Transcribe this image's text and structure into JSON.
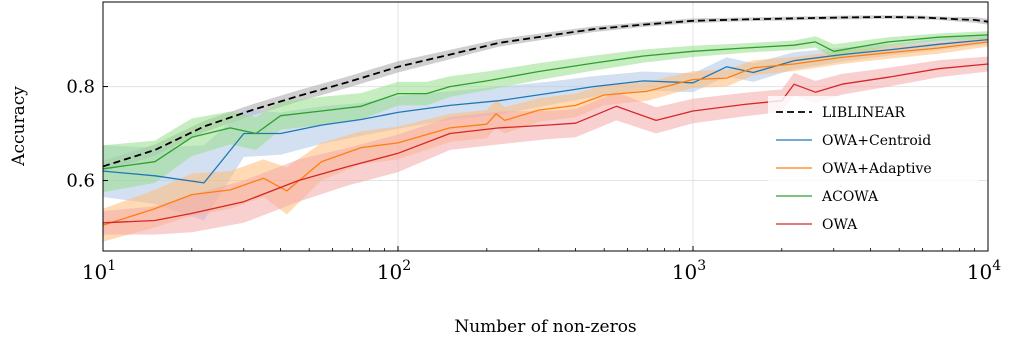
{
  "chart_data": {
    "type": "line",
    "title": "",
    "xlabel": "Number of non-zeros",
    "ylabel": "Accuracy",
    "xscale": "log",
    "xlim": [
      10,
      10000
    ],
    "ylim": [
      0.45,
      0.98
    ],
    "xticks": [
      {
        "value": 10,
        "base": "10",
        "exp": "1"
      },
      {
        "value": 100,
        "base": "10",
        "exp": "2"
      },
      {
        "value": 1000,
        "base": "10",
        "exp": "3"
      },
      {
        "value": 10000,
        "base": "10",
        "exp": "4"
      }
    ],
    "yticks": [
      {
        "value": 0.6,
        "label": "0.6"
      },
      {
        "value": 0.8,
        "label": "0.8"
      }
    ],
    "grid": true,
    "legend_position": "lower-right",
    "series": [
      {
        "name": "LIBLINEAR",
        "color": "#000000",
        "dash": true,
        "band_color": "#a8a8a8",
        "x": [
          10,
          15,
          22,
          32,
          46,
          68,
          100,
          150,
          220,
          320,
          460,
          680,
          1000,
          1500,
          2200,
          3200,
          4600,
          6000,
          7000,
          8000,
          9000,
          10000
        ],
        "y": [
          0.63,
          0.665,
          0.715,
          0.75,
          0.78,
          0.81,
          0.842,
          0.868,
          0.893,
          0.908,
          0.922,
          0.932,
          0.94,
          0.943,
          0.945,
          0.947,
          0.948,
          0.947,
          0.945,
          0.943,
          0.942,
          0.938
        ],
        "band": [
          0.012,
          0.012,
          0.012,
          0.012,
          0.012,
          0.012,
          0.012,
          0.01,
          0.008,
          0.007,
          0.006,
          0.005,
          0.005,
          0.004,
          0.004,
          0.004,
          0.004,
          0.004,
          0.004,
          0.005,
          0.006,
          0.006
        ]
      },
      {
        "name": "OWA+Centroid",
        "color": "#1f77b4",
        "dash": false,
        "band_color": "#aec7e8",
        "x": [
          10,
          15,
          22,
          30,
          40,
          55,
          75,
          100,
          150,
          220,
          320,
          460,
          680,
          1000,
          1300,
          1600,
          2200,
          3200,
          4600,
          6800,
          10000
        ],
        "y": [
          0.62,
          0.61,
          0.595,
          0.7,
          0.7,
          0.718,
          0.73,
          0.745,
          0.76,
          0.77,
          0.785,
          0.8,
          0.812,
          0.808,
          0.842,
          0.83,
          0.855,
          0.868,
          0.878,
          0.89,
          0.9
        ],
        "band": [
          0.055,
          0.06,
          0.08,
          0.05,
          0.045,
          0.04,
          0.035,
          0.035,
          0.03,
          0.03,
          0.025,
          0.022,
          0.02,
          0.02,
          0.02,
          0.02,
          0.018,
          0.015,
          0.012,
          0.012,
          0.01
        ]
      },
      {
        "name": "OWA+Adaptive",
        "color": "#ff7f0e",
        "dash": false,
        "band_color": "#ffbb78",
        "x": [
          10,
          15,
          20,
          27,
          35,
          42,
          55,
          75,
          100,
          150,
          200,
          215,
          230,
          300,
          400,
          500,
          700,
          1000,
          1300,
          1600,
          2200,
          3200,
          4600,
          6800,
          10000
        ],
        "y": [
          0.505,
          0.54,
          0.57,
          0.58,
          0.605,
          0.578,
          0.64,
          0.67,
          0.68,
          0.712,
          0.72,
          0.742,
          0.728,
          0.75,
          0.76,
          0.782,
          0.79,
          0.815,
          0.818,
          0.84,
          0.848,
          0.862,
          0.872,
          0.882,
          0.895
        ],
        "band": [
          0.035,
          0.04,
          0.045,
          0.04,
          0.04,
          0.05,
          0.04,
          0.035,
          0.035,
          0.03,
          0.03,
          0.03,
          0.028,
          0.025,
          0.025,
          0.022,
          0.02,
          0.018,
          0.018,
          0.016,
          0.015,
          0.014,
          0.013,
          0.012,
          0.01
        ]
      },
      {
        "name": "ACOWA",
        "color": "#2ca02c",
        "dash": false,
        "band_color": "#98df8a",
        "x": [
          10,
          15,
          20,
          27,
          33,
          40,
          55,
          75,
          100,
          125,
          150,
          200,
          300,
          460,
          680,
          1000,
          1500,
          2200,
          2600,
          3000,
          4600,
          6800,
          10000
        ],
        "y": [
          0.625,
          0.64,
          0.692,
          0.712,
          0.7,
          0.738,
          0.748,
          0.758,
          0.785,
          0.785,
          0.8,
          0.812,
          0.832,
          0.85,
          0.865,
          0.875,
          0.882,
          0.888,
          0.895,
          0.875,
          0.895,
          0.905,
          0.91
        ],
        "band": [
          0.05,
          0.045,
          0.04,
          0.035,
          0.035,
          0.03,
          0.03,
          0.028,
          0.025,
          0.025,
          0.022,
          0.02,
          0.018,
          0.016,
          0.014,
          0.012,
          0.01,
          0.01,
          0.012,
          0.015,
          0.01,
          0.008,
          0.008
        ]
      },
      {
        "name": "OWA",
        "color": "#d62728",
        "dash": false,
        "band_color": "#f4a9aa",
        "x": [
          10,
          15,
          20,
          30,
          46,
          68,
          100,
          150,
          220,
          320,
          400,
          550,
          750,
          1000,
          1500,
          2000,
          2200,
          2600,
          3200,
          4600,
          6800,
          10000
        ],
        "y": [
          0.51,
          0.515,
          0.53,
          0.555,
          0.6,
          0.63,
          0.658,
          0.7,
          0.712,
          0.718,
          0.722,
          0.758,
          0.728,
          0.748,
          0.762,
          0.77,
          0.805,
          0.788,
          0.805,
          0.82,
          0.838,
          0.848
        ],
        "band": [
          0.025,
          0.03,
          0.04,
          0.045,
          0.045,
          0.04,
          0.04,
          0.035,
          0.035,
          0.03,
          0.03,
          0.03,
          0.028,
          0.026,
          0.025,
          0.024,
          0.024,
          0.024,
          0.022,
          0.02,
          0.018,
          0.016
        ]
      }
    ]
  }
}
